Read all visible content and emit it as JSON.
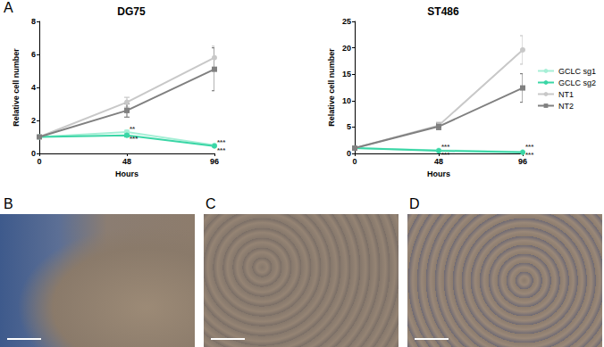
{
  "panel_labels": [
    "A",
    "B",
    "C",
    "D"
  ],
  "chart_data": [
    {
      "type": "line",
      "title": "DG75",
      "x_label": "Hours",
      "y_label": "Relative cell number",
      "x": [
        0,
        48,
        96
      ],
      "xlim": [
        0,
        96
      ],
      "xticks": [
        0,
        48,
        96
      ],
      "ylim": [
        0,
        8
      ],
      "yticks": [
        0,
        2,
        4,
        6,
        8
      ],
      "grid": false,
      "series": [
        {
          "name": "GCLC sg1",
          "color": "#a6efd6",
          "marker": "circle",
          "line_style": "solid",
          "values": [
            1,
            1.3,
            0.5
          ],
          "errors": [
            null,
            0.1,
            0.05
          ]
        },
        {
          "name": "GCLC sg2",
          "color": "#3ad6a6",
          "marker": "circle",
          "line_style": "solid",
          "values": [
            1,
            1.1,
            0.45
          ],
          "errors": [
            null,
            0.1,
            0.05
          ]
        },
        {
          "name": "NT1",
          "color": "#c8c8c8",
          "marker": "circle",
          "line_style": "solid",
          "values": [
            1,
            3.1,
            5.8
          ],
          "errors": [
            null,
            0.3,
            0.7
          ]
        },
        {
          "name": "NT2",
          "color": "#808080",
          "marker": "rect",
          "line_style": "solid",
          "values": [
            1,
            2.6,
            5.1
          ],
          "errors": [
            null,
            0.4,
            1.3
          ]
        }
      ],
      "annotations": [
        {
          "x": 48,
          "y": 1.5,
          "text": "**"
        },
        {
          "x": 48,
          "y": 0.9,
          "text": "***"
        },
        {
          "x": 96,
          "y": 0.7,
          "text": "***"
        },
        {
          "x": 96,
          "y": 0.2,
          "text": "***"
        }
      ]
    },
    {
      "type": "line",
      "title": "ST486",
      "x_label": "Hours",
      "y_label": "Relative cell number",
      "x": [
        0,
        48,
        96
      ],
      "xlim": [
        0,
        96
      ],
      "xticks": [
        0,
        48,
        96
      ],
      "ylim": [
        0,
        25
      ],
      "yticks": [
        0,
        5,
        10,
        15,
        20,
        25
      ],
      "grid": false,
      "legend": "right",
      "series": [
        {
          "name": "GCLC sg1",
          "color": "#a6efd6",
          "marker": "circle",
          "line_style": "solid",
          "values": [
            1,
            0.6,
            0.3
          ],
          "errors": [
            null,
            0.1,
            0.05
          ]
        },
        {
          "name": "GCLC sg2",
          "color": "#3ad6a6",
          "marker": "circle",
          "line_style": "solid",
          "values": [
            1,
            0.5,
            0.2
          ],
          "errors": [
            null,
            0.1,
            0.05
          ]
        },
        {
          "name": "NT1",
          "color": "#c8c8c8",
          "marker": "circle",
          "line_style": "solid",
          "values": [
            1,
            5.3,
            19.6
          ],
          "errors": [
            null,
            0.6,
            2.7
          ]
        },
        {
          "name": "NT2",
          "color": "#808080",
          "marker": "rect",
          "line_style": "solid",
          "values": [
            1,
            5.1,
            12.4
          ],
          "errors": [
            null,
            0.6,
            2.7
          ]
        }
      ],
      "annotations": [
        {
          "x": 48,
          "y": 1.2,
          "text": "***"
        },
        {
          "x": 48,
          "y": -0.2,
          "text": "***"
        },
        {
          "x": 96,
          "y": 1.2,
          "text": "***"
        },
        {
          "x": 96,
          "y": -0.2,
          "text": "***"
        }
      ]
    }
  ]
}
